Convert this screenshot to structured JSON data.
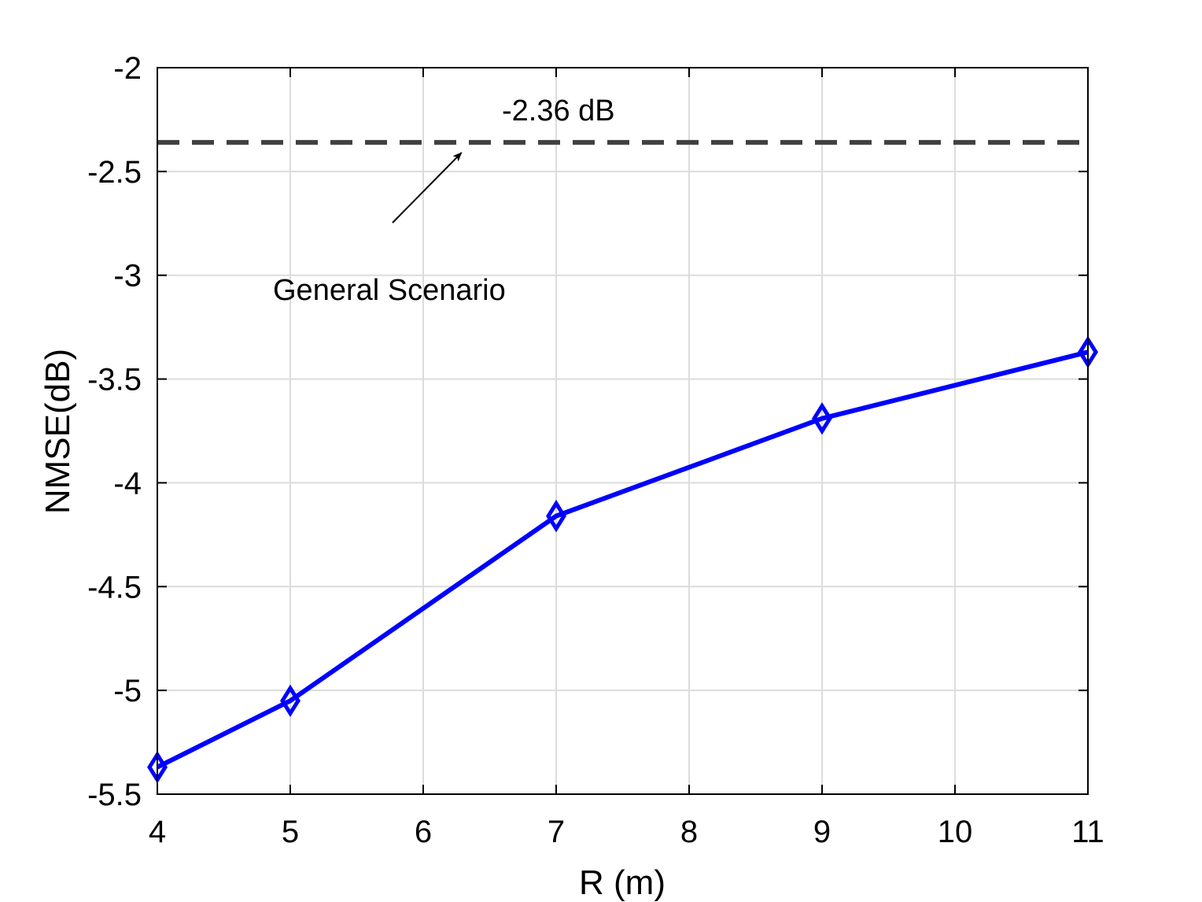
{
  "chart_data": {
    "type": "line",
    "title": "",
    "xlabel": "R (m)",
    "ylabel": "NMSE(dB)",
    "xlim": [
      4,
      11
    ],
    "ylim": [
      -5.5,
      -2
    ],
    "xticks": [
      4,
      5,
      6,
      7,
      8,
      9,
      10,
      11
    ],
    "yticks": [
      -2,
      -2.5,
      -3,
      -3.5,
      -4,
      -4.5,
      -5,
      -5.5
    ],
    "grid": true,
    "series": [
      {
        "x": [
          4,
          5,
          7,
          9,
          11
        ],
        "y": [
          -5.37,
          -5.05,
          -4.16,
          -3.69,
          -3.37
        ],
        "color": "#0000ff",
        "marker": "diamond",
        "line_style": "solid"
      }
    ],
    "reference_line": {
      "y": -2.36,
      "color": "#404040",
      "line_style": "dashed",
      "label": "-2.36 dB"
    },
    "annotation": {
      "text": "General Scenario",
      "arrow_target": {
        "x": 6.3,
        "y": -2.36
      }
    }
  }
}
